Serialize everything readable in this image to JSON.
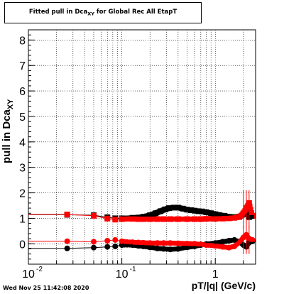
{
  "title": {
    "main": "Fitted pull in Dca",
    "sub": "XY",
    "rest": " for Global Rec All EtapT"
  },
  "ylabel": {
    "main": "pull in Dca",
    "sub": "XY"
  },
  "xlabel": "pT/|q| (GeV/c)",
  "timestamp": "Wed Nov 25 11:42:08 2020",
  "chart_data": {
    "type": "scatter",
    "title": "Fitted pull in DcaXY for Global Rec All EtapT",
    "xlabel": "pT/|q| (GeV/c)",
    "ylabel": "pull in DcaXY",
    "xscale": "log",
    "xlim": [
      0.01,
      2.7
    ],
    "ylim": [
      -0.8,
      8.4
    ],
    "grid": true,
    "xticks": [
      {
        "v": 0.01,
        "label": "10"
      },
      {
        "v": 0.1,
        "label": "10"
      },
      {
        "v": 1,
        "label": "1"
      }
    ],
    "xtick_exponents": [
      "-2",
      "-1",
      ""
    ],
    "yticks": [
      0,
      1,
      2,
      3,
      4,
      5,
      6,
      7,
      8
    ],
    "series": [
      {
        "color": "#000000",
        "kind": "sigma",
        "points": [
          [
            0.026,
            1.14
          ],
          [
            0.05,
            1.12
          ],
          [
            0.07,
            1.04
          ],
          [
            0.085,
            1.0
          ],
          [
            0.1,
            1.0
          ],
          [
            0.13,
            1.02
          ],
          [
            0.15,
            1.03
          ],
          [
            0.17,
            1.06
          ],
          [
            0.2,
            1.12
          ],
          [
            0.23,
            1.2
          ],
          [
            0.26,
            1.28
          ],
          [
            0.29,
            1.35
          ],
          [
            0.32,
            1.4
          ],
          [
            0.36,
            1.42
          ],
          [
            0.4,
            1.42
          ],
          [
            0.45,
            1.38
          ],
          [
            0.5,
            1.34
          ],
          [
            0.55,
            1.32
          ],
          [
            0.6,
            1.3
          ],
          [
            0.66,
            1.28
          ],
          [
            0.72,
            1.27
          ],
          [
            0.8,
            1.24
          ],
          [
            0.9,
            1.2
          ],
          [
            1.0,
            1.16
          ],
          [
            1.1,
            1.13
          ],
          [
            1.25,
            1.1
          ],
          [
            1.4,
            1.06
          ],
          [
            1.6,
            1.05
          ],
          [
            1.8,
            1.06
          ],
          [
            2.0,
            1.15
          ],
          [
            2.15,
            1.3
          ],
          [
            2.3,
            1.05
          ],
          [
            2.5,
            1.1
          ]
        ]
      },
      {
        "color": "#ff0000",
        "kind": "sigma",
        "points": [
          [
            0.026,
            1.15
          ],
          [
            0.05,
            1.1
          ],
          [
            0.07,
            0.99
          ],
          [
            0.085,
            0.95
          ],
          [
            0.1,
            0.97
          ],
          [
            0.13,
            0.98
          ],
          [
            0.15,
            0.97
          ],
          [
            0.17,
            0.97
          ],
          [
            0.2,
            0.97
          ],
          [
            0.24,
            0.97
          ],
          [
            0.28,
            0.97
          ],
          [
            0.33,
            0.97
          ],
          [
            0.4,
            0.97
          ],
          [
            0.5,
            0.97
          ],
          [
            0.6,
            0.97
          ],
          [
            0.7,
            0.97
          ],
          [
            0.8,
            0.98
          ],
          [
            1.0,
            0.98
          ],
          [
            1.2,
            0.99
          ],
          [
            1.4,
            1.0
          ],
          [
            1.6,
            1.02
          ],
          [
            1.8,
            1.05
          ],
          [
            2.0,
            1.2
          ],
          [
            2.15,
            1.4
          ],
          [
            2.3,
            1.6
          ],
          [
            2.5,
            1.1
          ]
        ]
      },
      {
        "color": "#000000",
        "kind": "mean",
        "points": [
          [
            0.026,
            -0.18
          ],
          [
            0.05,
            -0.15
          ],
          [
            0.07,
            -0.12
          ],
          [
            0.085,
            -0.1
          ],
          [
            0.1,
            -0.05
          ],
          [
            0.13,
            -0.05
          ],
          [
            0.15,
            -0.08
          ],
          [
            0.17,
            -0.1
          ],
          [
            0.2,
            -0.14
          ],
          [
            0.24,
            -0.18
          ],
          [
            0.28,
            -0.2
          ],
          [
            0.33,
            -0.22
          ],
          [
            0.4,
            -0.2
          ],
          [
            0.5,
            -0.14
          ],
          [
            0.6,
            -0.1
          ],
          [
            0.7,
            -0.05
          ],
          [
            0.8,
            -0.01
          ],
          [
            1.0,
            0.03
          ],
          [
            1.2,
            0.08
          ],
          [
            1.4,
            0.12
          ],
          [
            1.6,
            0.15
          ],
          [
            1.8,
            0.08
          ],
          [
            2.0,
            -0.05
          ],
          [
            2.15,
            -0.12
          ],
          [
            2.3,
            0.05
          ],
          [
            2.5,
            0.1
          ]
        ]
      },
      {
        "color": "#ff0000",
        "kind": "mean",
        "points": [
          [
            0.026,
            0.1
          ],
          [
            0.05,
            0.08
          ],
          [
            0.07,
            0.12
          ],
          [
            0.085,
            0.15
          ],
          [
            0.1,
            0.1
          ],
          [
            0.13,
            0.06
          ],
          [
            0.15,
            0.05
          ],
          [
            0.17,
            0.04
          ],
          [
            0.2,
            0.03
          ],
          [
            0.24,
            0.03
          ],
          [
            0.28,
            0.03
          ],
          [
            0.33,
            0.03
          ],
          [
            0.4,
            0.02
          ],
          [
            0.5,
            0.01
          ],
          [
            0.6,
            0.0
          ],
          [
            0.7,
            -0.02
          ],
          [
            0.8,
            -0.05
          ],
          [
            1.0,
            -0.08
          ],
          [
            1.2,
            -0.12
          ],
          [
            1.4,
            -0.15
          ],
          [
            1.6,
            -0.1
          ],
          [
            1.8,
            0.05
          ],
          [
            2.0,
            0.25
          ],
          [
            2.15,
            0.35
          ],
          [
            2.3,
            0.2
          ],
          [
            2.5,
            0.15
          ]
        ]
      }
    ]
  }
}
